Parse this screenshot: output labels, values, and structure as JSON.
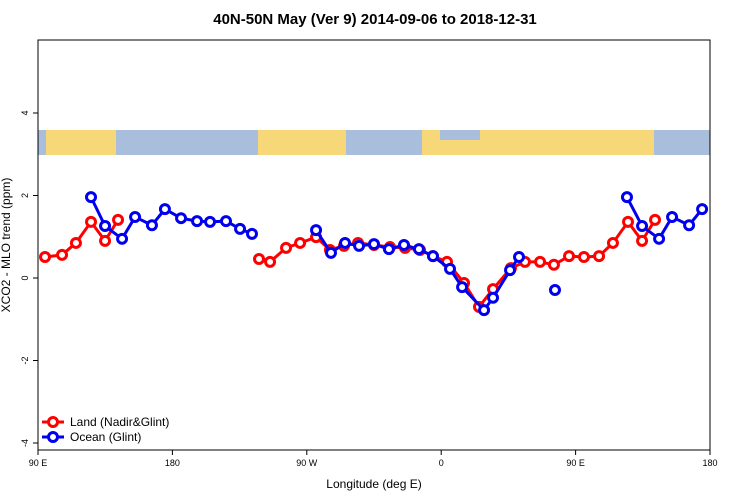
{
  "chart_data": {
    "type": "line",
    "title": "40N-50N May (Ver 9)   2014-09-06 to 2018-12-31",
    "x_label": "Longitude (deg E)",
    "y_label": "XCO2 - MLO trend (ppm)",
    "xlim": [
      90,
      540
    ],
    "ylim": [
      -4.17,
      5.77
    ],
    "xticks": [
      {
        "value": 90,
        "label": "90 E"
      },
      180,
      {
        "value": 270,
        "label": "90 W"
      },
      {
        "value": 360,
        "label": "0"
      },
      {
        "value": 450,
        "label": "90 E"
      },
      {
        "value": 540,
        "label": "180"
      }
    ],
    "yticks": [
      -4,
      -2,
      0,
      2,
      4
    ],
    "legend": "bottom-left",
    "series": [
      {
        "name": "Land (Nadir&Glint)",
        "color": "#ff0000",
        "x": [
          94.7,
          106.1,
          115.4,
          125.5,
          134.9,
          143.6,
          null,
          238.0,
          245.4,
          256.1,
          265.5,
          276.2,
          285.5,
          294.9,
          304.3,
          315.0,
          325.7,
          335.8,
          345.8,
          354.5,
          363.9,
          375.3,
          385.3,
          394.7,
          406.7,
          416.1,
          426.2,
          435.5,
          445.6,
          455.6,
          465.7,
          475.0,
          485.1,
          494.5,
          503.2
        ],
        "values": [
          0.51,
          0.56,
          0.85,
          1.36,
          0.9,
          1.41,
          null,
          0.46,
          0.39,
          0.73,
          0.85,
          0.99,
          0.68,
          0.78,
          0.85,
          0.8,
          0.75,
          0.73,
          0.68,
          0.53,
          0.39,
          -0.12,
          -0.7,
          -0.27,
          0.24,
          0.39,
          0.39,
          0.32,
          0.53,
          0.51,
          0.53,
          0.85,
          1.36,
          0.9,
          1.41
        ]
      },
      {
        "name": "Ocean (Glint)",
        "color": "#0000ee",
        "x": [
          125.5,
          134.9,
          146.3,
          155.0,
          166.3,
          175.0,
          185.8,
          196.5,
          205.2,
          215.9,
          225.3,
          233.3,
          null,
          276.2,
          286.2,
          295.6,
          305.0,
          315.0,
          325.0,
          335.1,
          345.1,
          354.5,
          365.9,
          374.0,
          388.7,
          394.7,
          406.1,
          412.1,
          null,
          436.2,
          null,
          484.4,
          494.5,
          505.9,
          514.6,
          526.0,
          534.7
        ],
        "values": [
          1.96,
          1.26,
          0.95,
          1.48,
          1.28,
          1.67,
          1.45,
          1.38,
          1.36,
          1.38,
          1.19,
          1.07,
          null,
          1.16,
          0.61,
          0.85,
          0.78,
          0.82,
          0.7,
          0.8,
          0.7,
          0.53,
          0.22,
          -0.22,
          -0.78,
          -0.48,
          0.19,
          0.51,
          null,
          -0.29,
          null,
          1.96,
          1.26,
          0.95,
          1.48,
          1.28,
          1.67
        ]
      }
    ]
  }
}
